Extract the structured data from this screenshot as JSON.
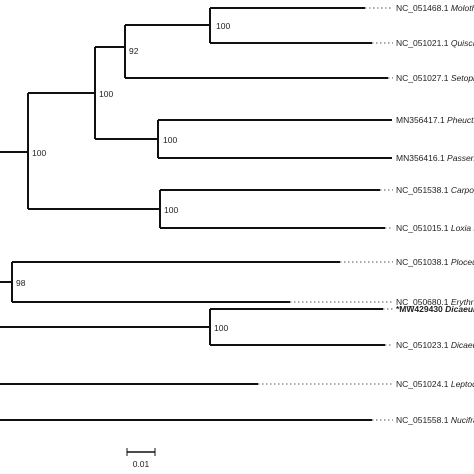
{
  "tips": [
    {
      "acc": "NC_051468.1",
      "species": "Molothrus",
      "highlight": false
    },
    {
      "acc": "NC_051021.1",
      "species": "Quiscalus",
      "highlight": false
    },
    {
      "acc": "NC_051027.1",
      "species": "Setophag",
      "highlight": false
    },
    {
      "acc": "MN356417.1",
      "species": "Pheucticus",
      "highlight": false
    },
    {
      "acc": "MN356416.1",
      "species": "Passerina",
      "highlight": false
    },
    {
      "acc": "NC_051538.1",
      "species": "Carpodac",
      "highlight": false
    },
    {
      "acc": "NC_051015.1",
      "species": "Loxia leuc",
      "highlight": false
    },
    {
      "acc": "NC_051038.1",
      "species": "Ploceus m",
      "highlight": false
    },
    {
      "acc": "NC_050680.1",
      "species": "Erythrura",
      "highlight": false
    },
    {
      "acc": "*MW429430",
      "species": "Dicaeum c",
      "highlight": true
    },
    {
      "acc": "NC_051023.1",
      "species": "Dicaeum",
      "highlight": false
    },
    {
      "acc": "NC_051024.1",
      "species": "Leptocom",
      "highlight": false
    },
    {
      "acc": "NC_051558.1",
      "species": "Nucifrag",
      "highlight": false
    }
  ],
  "supports": [
    "100",
    "92",
    "100",
    "100",
    "100",
    "100",
    "98",
    "100"
  ],
  "scale_bar": {
    "label": "0.01"
  }
}
